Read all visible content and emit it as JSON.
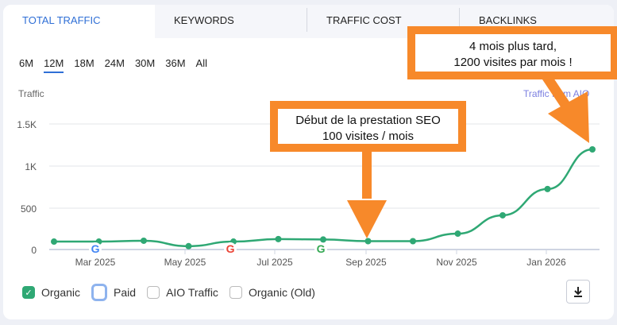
{
  "tabs": [
    {
      "label": "TOTAL TRAFFIC",
      "active": true
    },
    {
      "label": "KEYWORDS",
      "active": false
    },
    {
      "label": "TRAFFIC COST",
      "active": false
    },
    {
      "label": "BACKLINKS",
      "active": false
    }
  ],
  "periods": [
    {
      "label": "6M",
      "active": false
    },
    {
      "label": "12M",
      "active": true
    },
    {
      "label": "18M",
      "active": false
    },
    {
      "label": "24M",
      "active": false
    },
    {
      "label": "30M",
      "active": false
    },
    {
      "label": "36M",
      "active": false
    },
    {
      "label": "All",
      "active": false
    }
  ],
  "y_title": "Traffic",
  "aio_link": "Traffic from AIO",
  "annotations": {
    "start": {
      "line1": "Début de la prestation SEO",
      "line2": "100 visites / mois"
    },
    "end": {
      "line1": "4 mois plus tard,",
      "line2": "1200 visites par mois !"
    },
    "color": "#f7892a"
  },
  "legend": [
    {
      "label": "Organic",
      "checked": true
    },
    {
      "label": "Paid",
      "checked": false
    },
    {
      "label": "AIO Traffic",
      "checked": false
    },
    {
      "label": "Organic (Old)",
      "checked": false
    }
  ],
  "download_icon": "download-icon",
  "chart_data": {
    "type": "line",
    "title": "Total Traffic",
    "ylabel": "Traffic",
    "xlabel": "",
    "ylim": [
      0,
      1500
    ],
    "yticks": [
      "0",
      "500",
      "1K",
      "1.5K"
    ],
    "x_tick_labels": [
      "Mar 2025",
      "May 2025",
      "Jul 2025",
      "Sep 2025",
      "Nov 2025",
      "Jan 2026"
    ],
    "x": [
      "Feb 2025",
      "Mar 2025",
      "Apr 2025",
      "May 2025",
      "Jun 2025",
      "Jul 2025",
      "Aug 2025",
      "Sep 2025",
      "Oct 2025",
      "Nov 2025",
      "Dec 2025",
      "Jan 2026",
      "Feb 2026"
    ],
    "series": [
      {
        "name": "Organic",
        "color": "#2fa874",
        "values": [
          95,
          95,
          105,
          40,
          95,
          125,
          120,
          100,
          100,
          190,
          410,
          725,
          1200
        ]
      }
    ],
    "google_update_markers": [
      "Mar 2025",
      "Jun 2025",
      "Aug 2025"
    ],
    "grid": true,
    "legend_position": "bottom"
  }
}
